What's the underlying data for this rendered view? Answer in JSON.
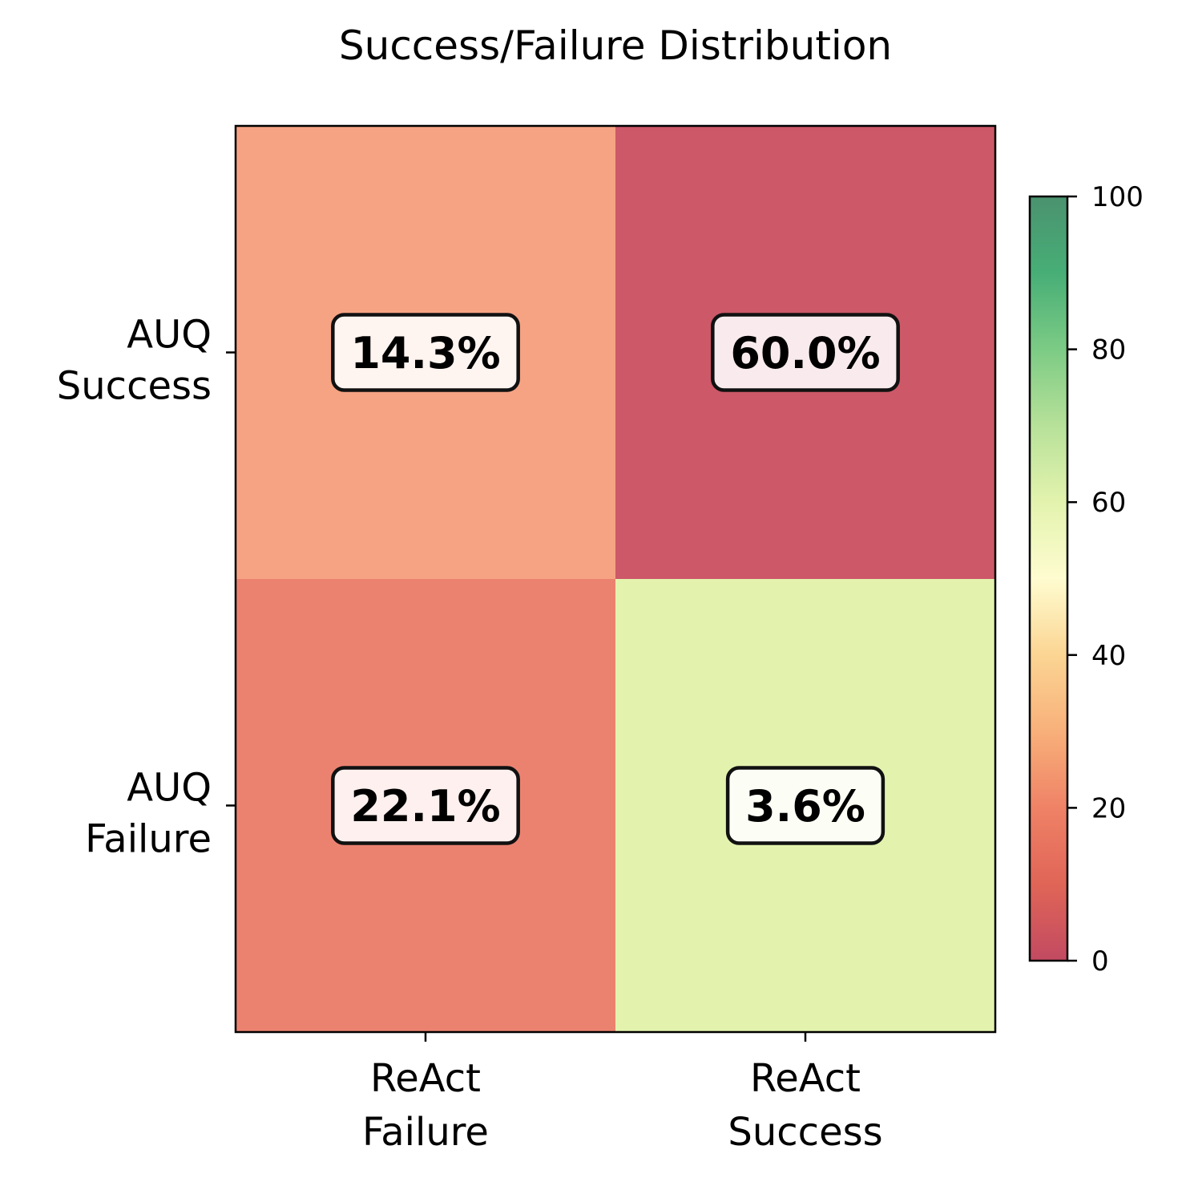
{
  "chart_data": {
    "type": "heatmap",
    "title": "Success/Failure Distribution",
    "x_categories": [
      "ReAct\nFailure",
      "ReAct\nSuccess"
    ],
    "y_categories": [
      "AUQ\nSuccess",
      "AUQ\nFailure"
    ],
    "values": [
      [
        14.3,
        60.0
      ],
      [
        22.1,
        3.6
      ]
    ],
    "cell_labels": [
      [
        "14.3%",
        "60.0%"
      ],
      [
        "22.1%",
        "3.6%"
      ]
    ],
    "cell_colors": [
      [
        "#f6a383",
        "#cc5868"
      ],
      [
        "#eb8270",
        "#e3f3ae"
      ]
    ],
    "colorbar": {
      "min": 0,
      "max": 100,
      "ticks": [
        "0",
        "20",
        "40",
        "60",
        "80",
        "100"
      ],
      "colormap": "RdYlGn",
      "alpha": 0.7
    },
    "grid": false
  }
}
